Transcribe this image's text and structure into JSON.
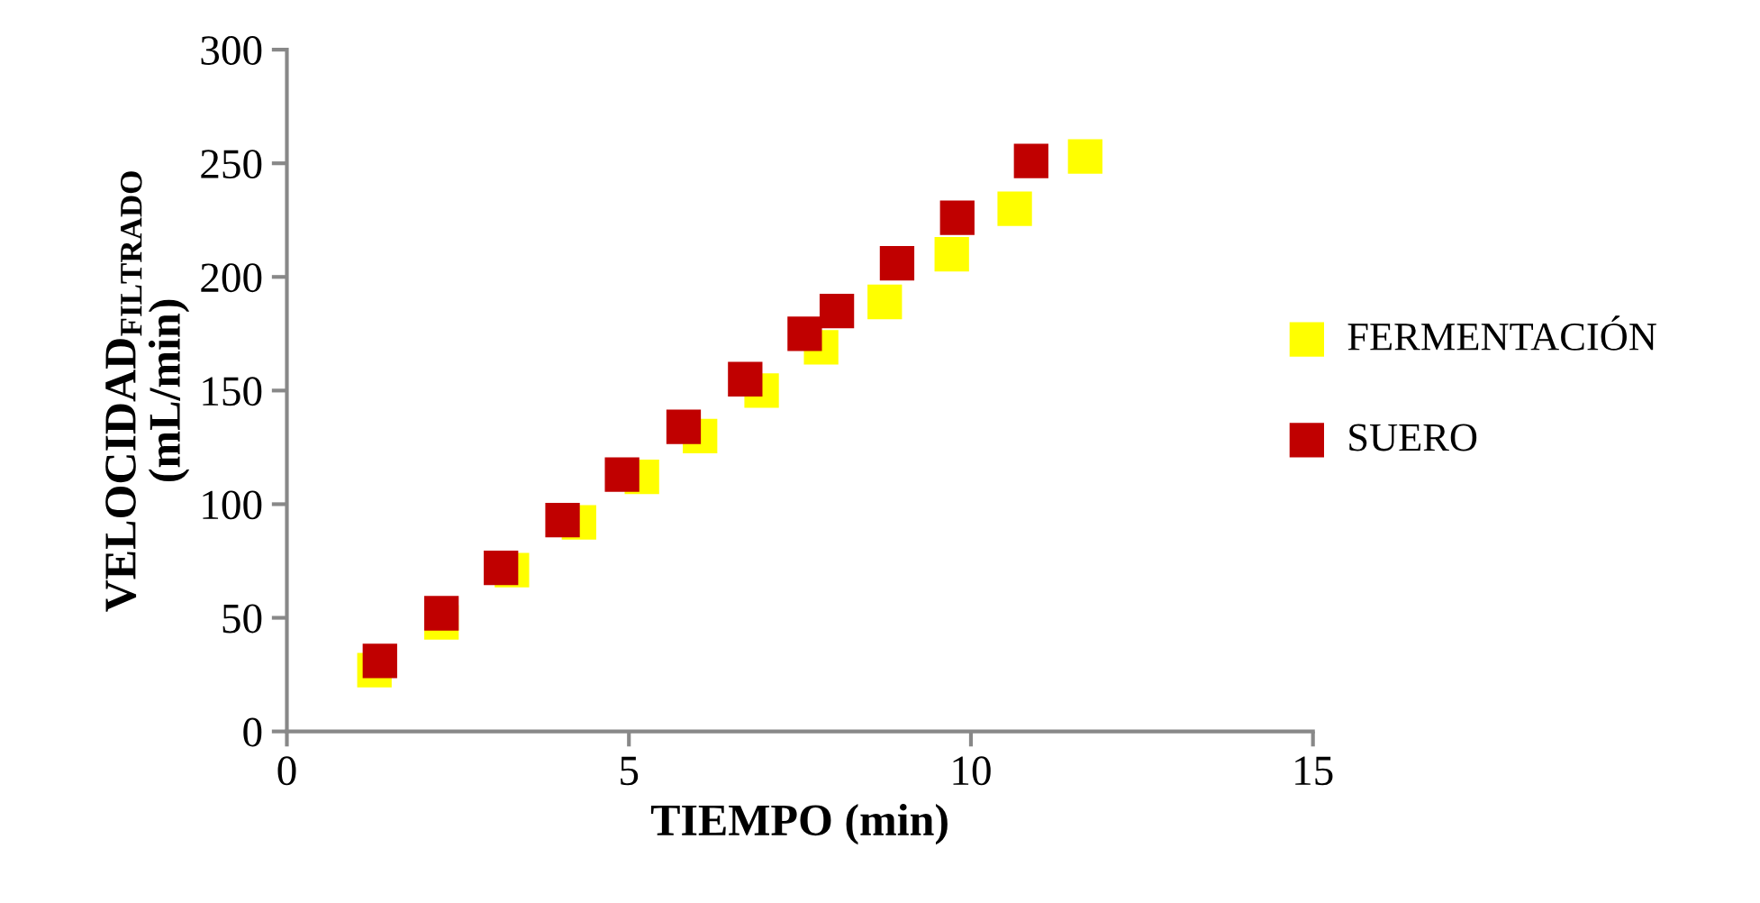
{
  "chart_data": {
    "type": "scatter",
    "xlabel": "TIEMPO (min)",
    "ylabel": "VELOCIDAD$_{FILTRADO}$\n(mL/min)",
    "xlim": [
      0,
      15
    ],
    "xticks": [
      0,
      5,
      10,
      15
    ],
    "ylim": [
      0,
      300
    ],
    "yticks": [
      0,
      50,
      100,
      150,
      200,
      250,
      300
    ],
    "grid": false,
    "legend": "right",
    "marker": "square",
    "series": [
      {
        "name": "FERMENTACIÓN",
        "color": "#ffff00",
        "x": [
          1.28,
          2.26,
          3.29,
          4.27,
          5.19,
          6.04,
          6.94,
          7.81,
          8.74,
          9.72,
          10.64,
          11.67
        ],
        "values": [
          27,
          48,
          71,
          92,
          112,
          130,
          150,
          169,
          189,
          210,
          230,
          253
        ]
      },
      {
        "name": "SUERO",
        "color": "#c00000",
        "x": [
          1.36,
          2.26,
          3.13,
          4.03,
          4.9,
          5.8,
          6.7,
          7.57,
          8.04,
          8.92,
          9.8,
          10.88
        ],
        "values": [
          31,
          52,
          72,
          93,
          113,
          134,
          155,
          175,
          185,
          206,
          226,
          251
        ]
      }
    ]
  }
}
